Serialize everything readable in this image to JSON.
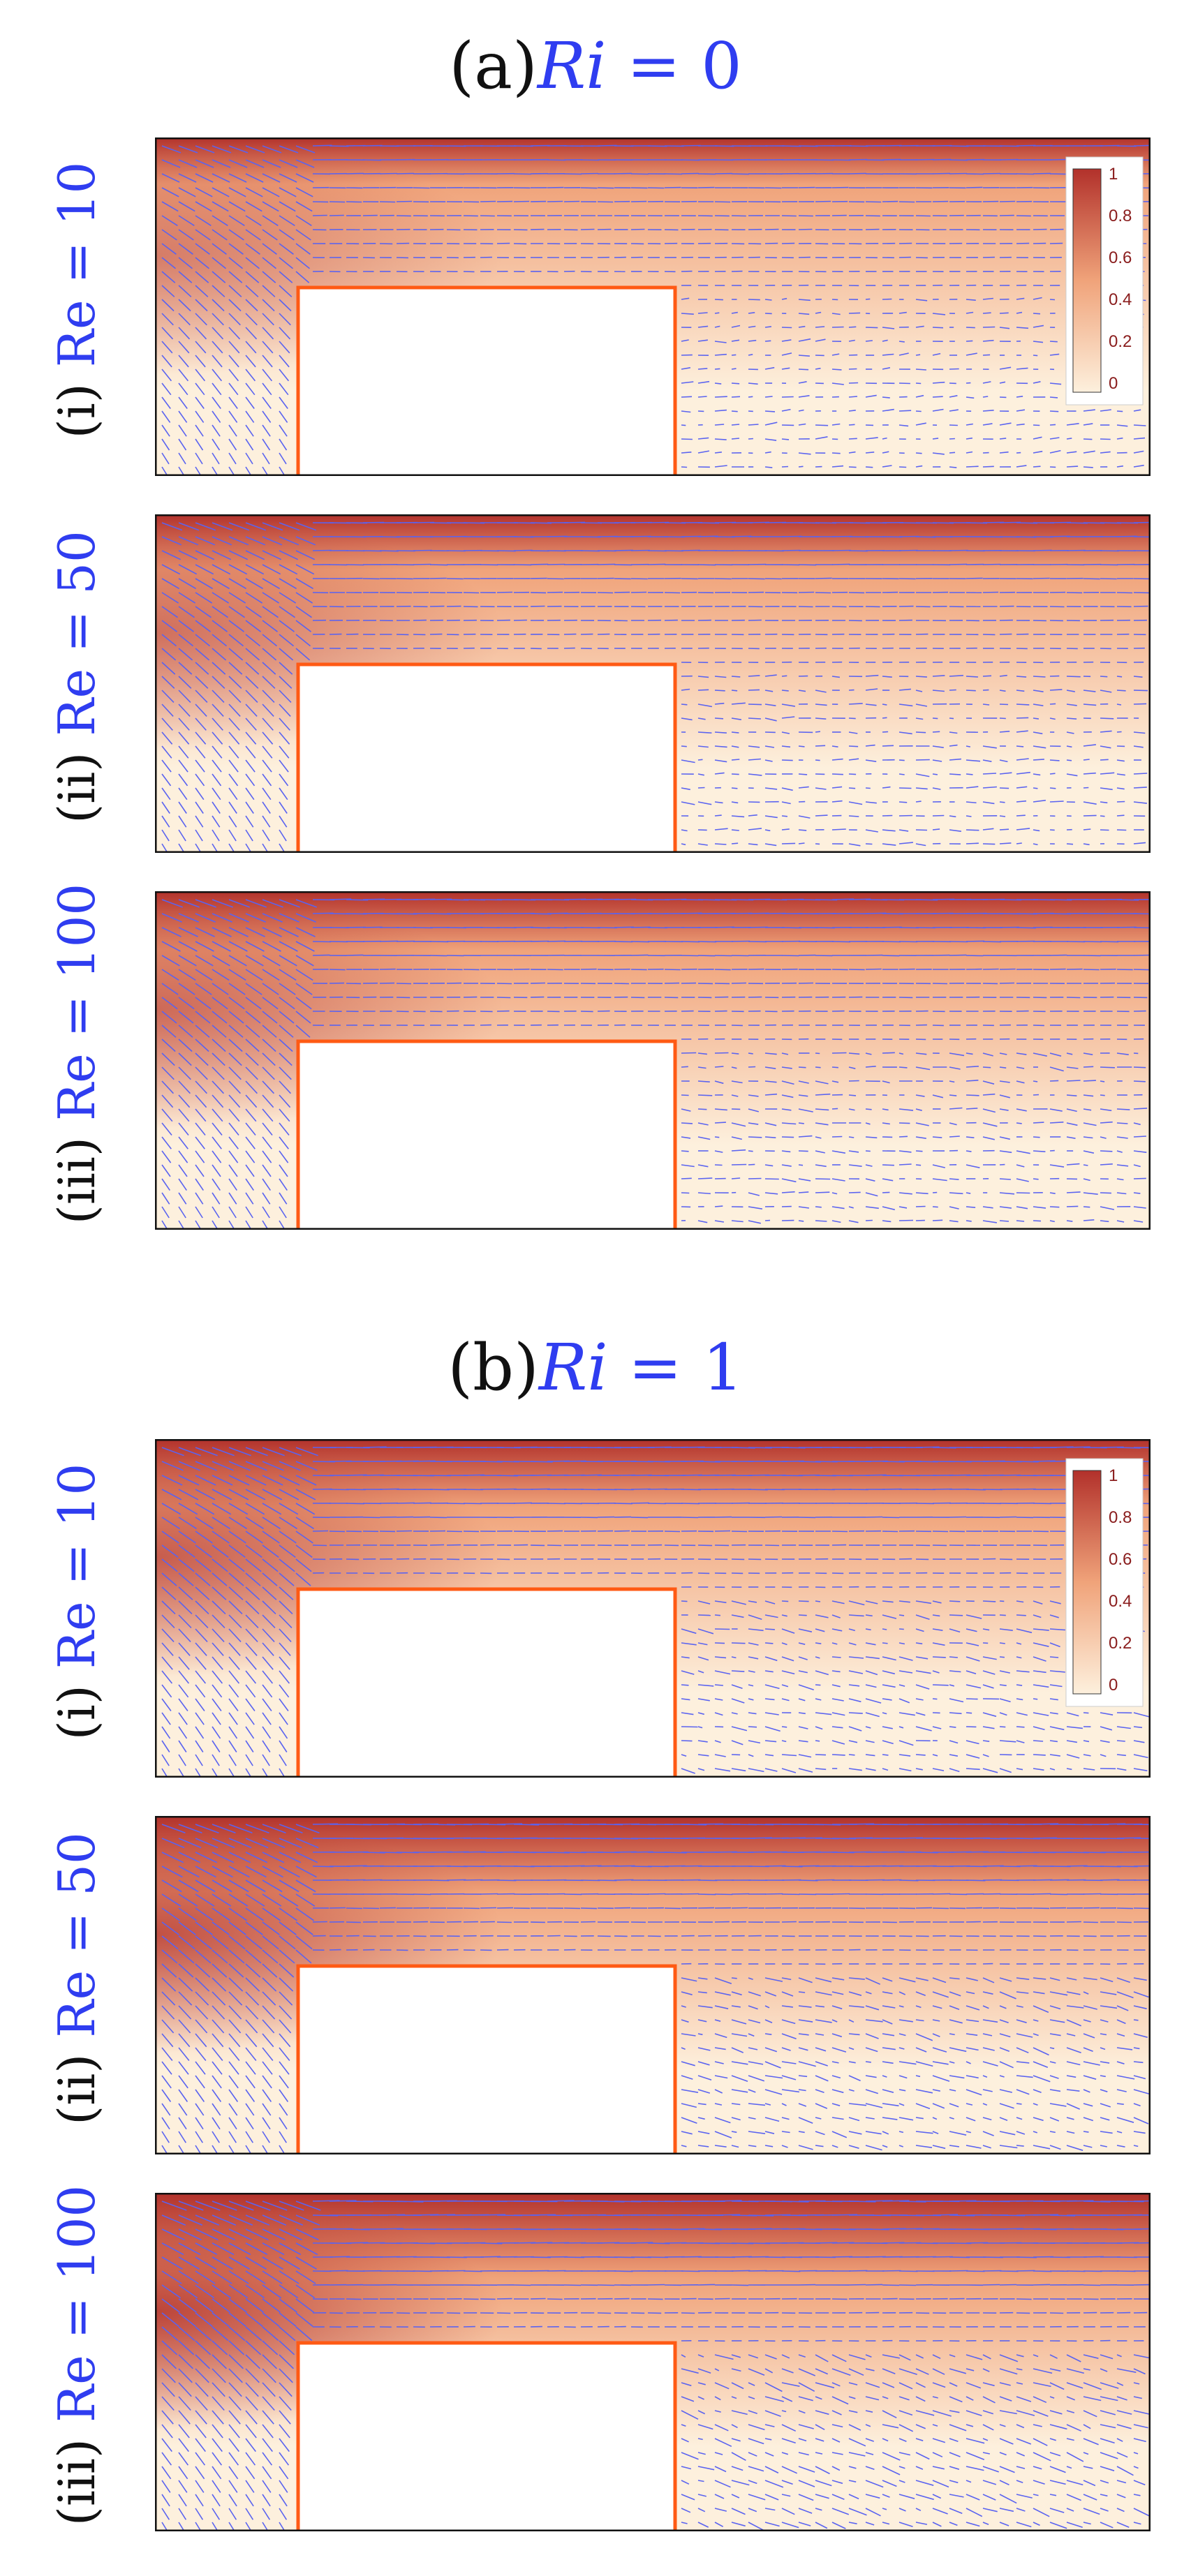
{
  "groups": [
    {
      "id": "a",
      "prefix": "(a)",
      "ri_label": "Ri",
      "ri_value": "= 0",
      "rows": [
        {
          "roman": "(i)",
          "re_text": "Re = 10"
        },
        {
          "roman": "(ii)",
          "re_text": "Re = 50"
        },
        {
          "roman": "(iii)",
          "re_text": "Re = 100"
        }
      ]
    },
    {
      "id": "b",
      "prefix": "(b)",
      "ri_label": "Ri",
      "ri_value": "= 1",
      "rows": [
        {
          "roman": "(i)",
          "re_text": "Re = 10"
        },
        {
          "roman": "(ii)",
          "re_text": "Re = 50"
        },
        {
          "roman": "(iii)",
          "re_text": "Re = 100"
        }
      ]
    }
  ],
  "colorbar": {
    "ticks": [
      "1",
      "0.8",
      "0.6",
      "0.4",
      "0.2",
      "0"
    ]
  },
  "colors": {
    "hot": "#b2312b",
    "mid": "#f0a37a",
    "cool": "#fdf0dd",
    "arrow": "#5a63f0",
    "obstacle": "#ff5a14",
    "label_blue": "#2f3df0"
  }
}
